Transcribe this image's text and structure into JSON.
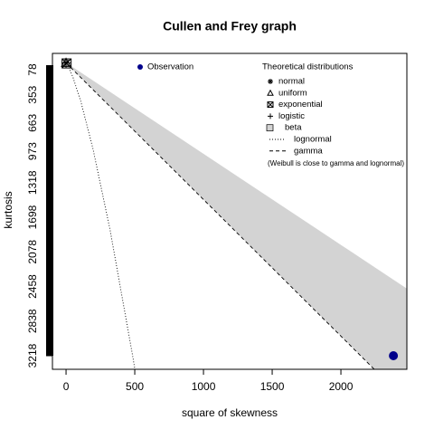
{
  "chart_data": {
    "type": "cullen-frey",
    "title": "Cullen and Frey graph",
    "xlabel": "square of skewness",
    "ylabel": "kurtosis",
    "xlim": [
      -99,
      2480
    ],
    "ylim": [
      -101,
      3367
    ],
    "y_reversed": true,
    "xticks": [
      0,
      500,
      1000,
      1500,
      2000
    ],
    "yticks": [
      78,
      353,
      663,
      973,
      1318,
      1698,
      2078,
      2458,
      2838,
      3218
    ],
    "observation": {
      "name": "Observation",
      "x": 2382,
      "y": 3218,
      "color": "#00008b"
    },
    "legend_title": "Theoretical distributions",
    "points": [
      {
        "name": "normal",
        "x": 0,
        "y": 3,
        "marker": "asterisk"
      },
      {
        "name": "uniform",
        "x": 0,
        "y": 1.8,
        "marker": "triangle"
      },
      {
        "name": "exponential",
        "x": 4,
        "y": 9,
        "marker": "boxed-x"
      },
      {
        "name": "logistic",
        "x": 0,
        "y": 4.2,
        "marker": "plus"
      }
    ],
    "beta": {
      "name": "beta",
      "color": "#d3d3d3",
      "x": [
        0,
        2480,
        2480,
        0
      ],
      "y": [
        1,
        2481,
        3723,
        3
      ]
    },
    "lines": [
      {
        "name": "lognormal",
        "dash": "1,2",
        "x": [
          0,
          6.1,
          16,
          50,
          108,
          196,
          320,
          486,
          524.8
        ],
        "y": [
          3,
          15.6,
          41,
          159,
          429,
          947,
          1833,
          3231,
          3586.4
        ]
      },
      {
        "name": "gamma",
        "dash": "4,3",
        "x": [
          0,
          2480
        ],
        "y": [
          3,
          3723
        ]
      }
    ],
    "note": "(Weibull is close to gamma and lognormal)"
  }
}
